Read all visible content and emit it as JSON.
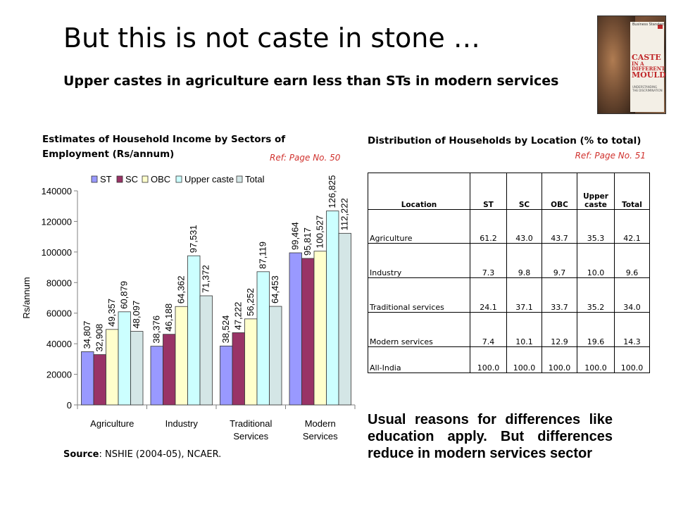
{
  "slide": {
    "title": "But this is not caste in stone …",
    "subtitle": "Upper castes in agriculture earn less than STs in modern services",
    "chart_heading": "Estimates of Household Income by  Sectors of Employment (Rs/annum)",
    "chart_ref": "Ref: Page No. 50",
    "table_heading": "Distribution of Households by Location (% to total)",
    "table_ref": "Ref: Page No. 51",
    "source_label": "Source",
    "source_text": ": NSHIE (2004-05), NCAER.",
    "note": "Usual reasons for differences like education apply. But differences reduce in modern services sector",
    "book_cover": {
      "publisher": "Business Standard",
      "title_lines": [
        "CASTE",
        "IN A",
        "DIFFERENT",
        "MOULD"
      ],
      "caption": "UNDERSTANDING THE DISCRIMINATION"
    }
  },
  "colors": {
    "ST": "#9999ff",
    "SC": "#993366",
    "OBC": "#ffffcc",
    "Upper caste": "#ccffff",
    "Total": "#d4e6e6",
    "ref": "#d0312d"
  },
  "chart_data": {
    "type": "bar",
    "categories": [
      [
        "Agriculture"
      ],
      [
        "Industry"
      ],
      [
        "Traditional",
        "Services"
      ],
      [
        "Modern",
        "Services"
      ]
    ],
    "series": [
      {
        "name": "ST",
        "values": [
          34807,
          38376,
          38524,
          99464
        ]
      },
      {
        "name": "SC",
        "values": [
          32908,
          46188,
          47222,
          95817
        ]
      },
      {
        "name": "OBC",
        "values": [
          49357,
          64362,
          56252,
          100527
        ]
      },
      {
        "name": "Upper caste",
        "values": [
          60879,
          97531,
          87119,
          126825
        ]
      },
      {
        "name": "Total",
        "values": [
          48097,
          71372,
          64453,
          112222
        ]
      }
    ],
    "data_labels": [
      [
        "34,807",
        "32,908",
        "49,357",
        "60,879",
        "48,097"
      ],
      [
        "38,376",
        "46,188",
        "64,362",
        "97,531",
        "71,372"
      ],
      [
        "38,524",
        "47,222",
        "56,252",
        "87,119",
        "64,453"
      ],
      [
        "99,464",
        "95,817",
        "100,527",
        "126,825",
        "112,222"
      ]
    ],
    "ylabel": "Rs/annum",
    "ylim": [
      0,
      140000
    ],
    "yticks": [
      0,
      20000,
      40000,
      60000,
      80000,
      100000,
      120000,
      140000
    ],
    "legend_position": "top"
  },
  "table": {
    "headers": [
      "Location",
      "ST",
      "SC",
      "OBC",
      "Upper caste",
      "Total"
    ],
    "rows": [
      [
        "Agriculture",
        "61.2",
        "43.0",
        "43.7",
        "35.3",
        "42.1"
      ],
      [
        "Industry",
        "7.3",
        "9.8",
        "9.7",
        "10.0",
        "9.6"
      ],
      [
        "Traditional services",
        "24.1",
        "37.1",
        "33.7",
        "35.2",
        "34.0"
      ],
      [
        "Modern services",
        "7.4",
        "10.1",
        "12.9",
        "19.6",
        "14.3"
      ],
      [
        "All-India",
        "100.0",
        "100.0",
        "100.0",
        "100.0",
        "100.0"
      ]
    ]
  }
}
